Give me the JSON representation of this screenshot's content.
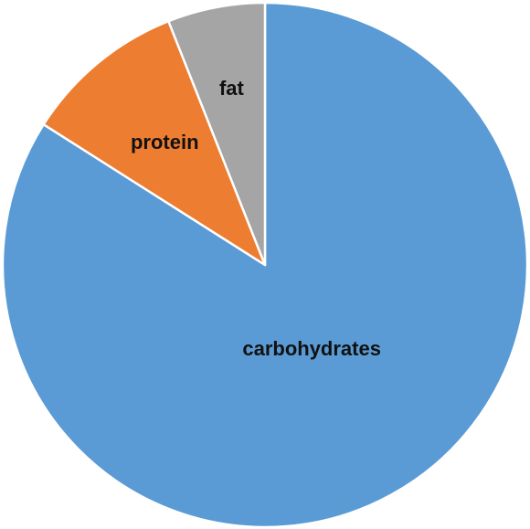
{
  "chart_data": {
    "type": "pie",
    "title": "",
    "legend": "none",
    "start": "12 o'clock",
    "direction": "clockwise",
    "slices": [
      {
        "label": "carbohydrates",
        "value": 84,
        "color": "#5b9bd5"
      },
      {
        "label": "protein",
        "value": 10,
        "color": "#ed7d31"
      },
      {
        "label": "fat",
        "value": 6,
        "color": "#a5a5a5"
      }
    ]
  }
}
